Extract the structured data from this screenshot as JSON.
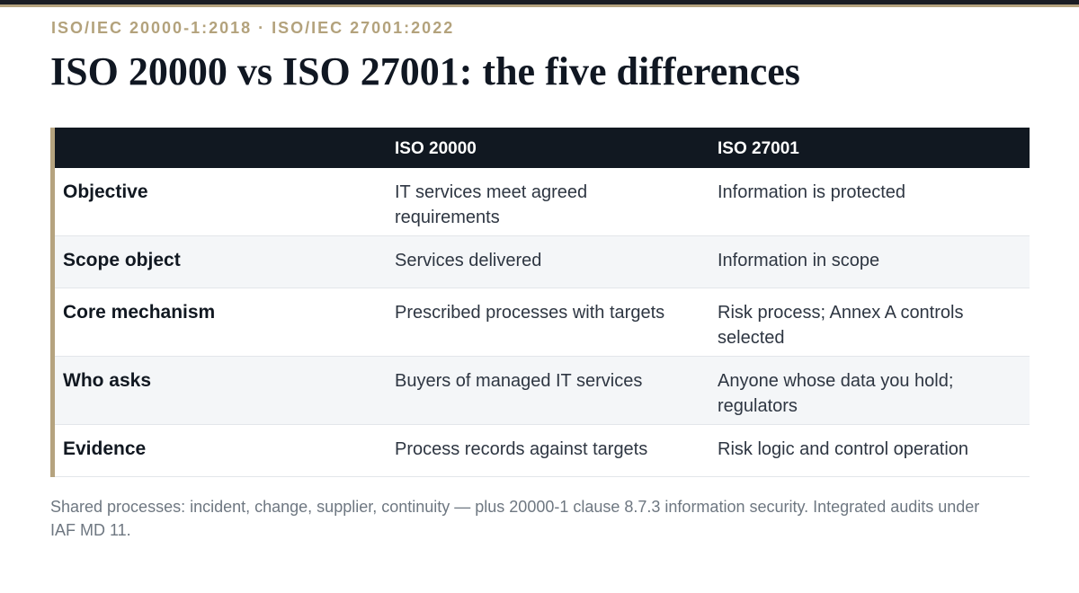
{
  "header": {
    "kicker": "ISO/IEC 20000-1:2018 · ISO/IEC 27001:2022",
    "title": "ISO 20000 vs ISO 27001: the five differences"
  },
  "table": {
    "columns": [
      "",
      "ISO 20000",
      "ISO 27001"
    ],
    "rows": [
      {
        "label": "Objective",
        "iso20000": "IT services meet agreed requirements",
        "iso27001": "Information is protected"
      },
      {
        "label": "Scope object",
        "iso20000": "Services delivered",
        "iso27001": "Information in scope"
      },
      {
        "label": "Core mechanism",
        "iso20000": "Prescribed processes with targets",
        "iso27001": "Risk process; Annex A controls selected"
      },
      {
        "label": "Who asks",
        "iso20000": "Buyers of managed IT services",
        "iso27001": "Anyone whose data you hold; regulators"
      },
      {
        "label": "Evidence",
        "iso20000": "Process records against targets",
        "iso27001": "Risk logic and control operation"
      }
    ]
  },
  "footnote": "Shared processes: incident, change, supplier, continuity — plus 20000-1 clause 8.7.3 information security. Integrated audits under IAF MD 11."
}
